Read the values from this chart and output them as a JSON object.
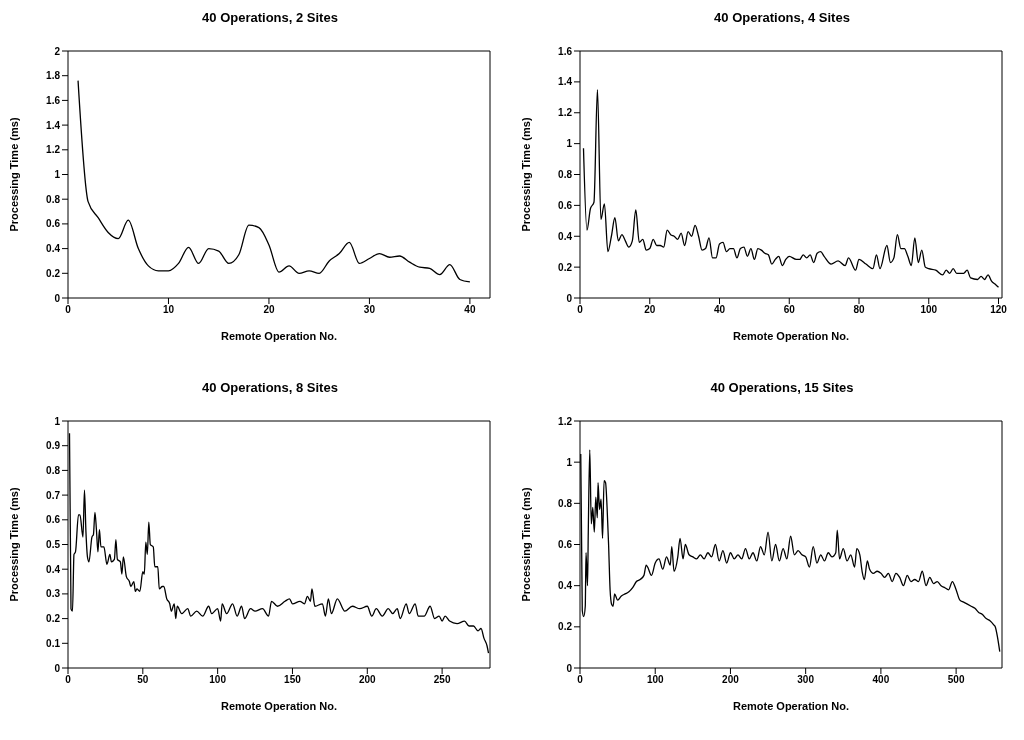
{
  "chart_data": [
    {
      "type": "line",
      "title": "40 Operations, 2 Sites",
      "xlabel": "Remote Operation No.",
      "ylabel": "Processing Time (ms)",
      "xlim": [
        0,
        42
      ],
      "xticks": [
        0,
        10,
        20,
        30,
        40
      ],
      "ylim": [
        0,
        2
      ],
      "yticks": [
        0,
        0.2,
        0.4,
        0.6,
        0.8,
        1,
        1.2,
        1.4,
        1.6,
        1.8,
        2
      ],
      "x": [
        1,
        2,
        3,
        4,
        5,
        6,
        7,
        8,
        9,
        10,
        11,
        12,
        13,
        14,
        15,
        16,
        17,
        18,
        19,
        20,
        21,
        22,
        23,
        24,
        25,
        26,
        27,
        28,
        29,
        30,
        31,
        32,
        33,
        34,
        35,
        36,
        37,
        38,
        39,
        40
      ],
      "series": [
        {
          "color": "#000000",
          "values": [
            1.76,
            0.78,
            0.65,
            0.53,
            0.48,
            0.63,
            0.4,
            0.26,
            0.22,
            0.22,
            0.28,
            0.41,
            0.28,
            0.4,
            0.38,
            0.28,
            0.35,
            0.59,
            0.57,
            0.43,
            0.21,
            0.26,
            0.2,
            0.22,
            0.2,
            0.3,
            0.36,
            0.45,
            0.28,
            0.32,
            0.36,
            0.33,
            0.34,
            0.29,
            0.25,
            0.24,
            0.19,
            0.27,
            0.15,
            0.13
          ]
        }
      ]
    },
    {
      "type": "line",
      "title": "40 Operations, 4 Sites",
      "xlabel": "Remote Operation No.",
      "ylabel": "Processing Time (ms)",
      "xlim": [
        0,
        121
      ],
      "xticks": [
        0,
        20,
        40,
        60,
        80,
        100,
        120
      ],
      "ylim": [
        0,
        1.6
      ],
      "yticks": [
        0,
        0.2,
        0.4,
        0.6,
        0.8,
        1,
        1.2,
        1.4,
        1.6
      ],
      "x": [
        1,
        2,
        3,
        4,
        5,
        6,
        7,
        8,
        9,
        10,
        11,
        12,
        13,
        14,
        15,
        16,
        17,
        18,
        19,
        20,
        21,
        22,
        23,
        24,
        25,
        26,
        27,
        28,
        29,
        30,
        31,
        32,
        33,
        34,
        35,
        36,
        37,
        38,
        39,
        40,
        41,
        42,
        43,
        44,
        45,
        46,
        47,
        48,
        49,
        50,
        51,
        52,
        53,
        54,
        55,
        56,
        57,
        58,
        59,
        60,
        62,
        63,
        64,
        65,
        66,
        67,
        68,
        69,
        70,
        72,
        74,
        76,
        77,
        79,
        80,
        82,
        84,
        85,
        86,
        88,
        89,
        90,
        91,
        92,
        93,
        94,
        95,
        96,
        97,
        98,
        99,
        100,
        102,
        104,
        105,
        106,
        107,
        108,
        110,
        111,
        112,
        114,
        115,
        116,
        117,
        118,
        119,
        120
      ],
      "series": [
        {
          "color": "#000000",
          "values": [
            0.97,
            0.44,
            0.58,
            0.62,
            1.35,
            0.51,
            0.61,
            0.3,
            0.4,
            0.52,
            0.37,
            0.41,
            0.37,
            0.33,
            0.37,
            0.57,
            0.36,
            0.38,
            0.31,
            0.32,
            0.38,
            0.34,
            0.34,
            0.33,
            0.44,
            0.41,
            0.4,
            0.38,
            0.42,
            0.34,
            0.43,
            0.4,
            0.47,
            0.4,
            0.31,
            0.32,
            0.39,
            0.26,
            0.26,
            0.35,
            0.36,
            0.3,
            0.32,
            0.32,
            0.26,
            0.32,
            0.33,
            0.27,
            0.32,
            0.25,
            0.32,
            0.31,
            0.29,
            0.28,
            0.22,
            0.25,
            0.27,
            0.21,
            0.25,
            0.27,
            0.25,
            0.25,
            0.28,
            0.26,
            0.28,
            0.23,
            0.29,
            0.3,
            0.27,
            0.22,
            0.24,
            0.21,
            0.26,
            0.18,
            0.25,
            0.22,
            0.19,
            0.28,
            0.19,
            0.34,
            0.23,
            0.26,
            0.41,
            0.32,
            0.32,
            0.27,
            0.21,
            0.39,
            0.23,
            0.31,
            0.2,
            0.19,
            0.18,
            0.15,
            0.18,
            0.16,
            0.19,
            0.16,
            0.16,
            0.18,
            0.13,
            0.12,
            0.14,
            0.12,
            0.15,
            0.11,
            0.09,
            0.07
          ]
        }
      ]
    },
    {
      "type": "line",
      "title": "40 Operations, 8 Sites",
      "xlabel": "Remote Operation No.",
      "ylabel": "Processing Time (ms)",
      "xlim": [
        0,
        282
      ],
      "xticks": [
        0,
        50,
        100,
        150,
        200,
        250
      ],
      "ylim": [
        0,
        1
      ],
      "yticks": [
        0,
        0.1,
        0.2,
        0.3,
        0.4,
        0.5,
        0.6,
        0.7,
        0.8,
        0.9,
        1
      ],
      "x": [
        1,
        2,
        3,
        4,
        5,
        7,
        8,
        10,
        11,
        12,
        13,
        14,
        16,
        17,
        18,
        19,
        20,
        21,
        22,
        24,
        26,
        28,
        29,
        31,
        32,
        33,
        35,
        36,
        37,
        39,
        41,
        42,
        44,
        45,
        46,
        48,
        50,
        51,
        52,
        53,
        54,
        55,
        57,
        58,
        60,
        61,
        63,
        64,
        66,
        68,
        69,
        71,
        72,
        73,
        76,
        80,
        82,
        86,
        90,
        94,
        96,
        100,
        102,
        103,
        106,
        110,
        113,
        116,
        118,
        122,
        125,
        130,
        134,
        136,
        140,
        145,
        148,
        150,
        155,
        158,
        160,
        162,
        163,
        165,
        170,
        172,
        174,
        176,
        180,
        185,
        190,
        195,
        200,
        203,
        206,
        210,
        214,
        217,
        220,
        222,
        226,
        228,
        232,
        234,
        238,
        242,
        245,
        248,
        250,
        252,
        255,
        260,
        265,
        268,
        271,
        274,
        276,
        278,
        280,
        281
      ],
      "series": [
        {
          "color": "#000000",
          "values": [
            0.95,
            0.24,
            0.23,
            0.46,
            0.47,
            0.62,
            0.62,
            0.53,
            0.72,
            0.55,
            0.45,
            0.43,
            0.53,
            0.54,
            0.63,
            0.56,
            0.47,
            0.56,
            0.49,
            0.49,
            0.42,
            0.46,
            0.43,
            0.44,
            0.52,
            0.44,
            0.43,
            0.38,
            0.45,
            0.37,
            0.35,
            0.33,
            0.35,
            0.31,
            0.32,
            0.31,
            0.39,
            0.38,
            0.51,
            0.46,
            0.59,
            0.5,
            0.49,
            0.41,
            0.41,
            0.32,
            0.33,
            0.33,
            0.28,
            0.26,
            0.23,
            0.26,
            0.2,
            0.25,
            0.22,
            0.24,
            0.21,
            0.23,
            0.21,
            0.25,
            0.22,
            0.24,
            0.19,
            0.26,
            0.22,
            0.26,
            0.21,
            0.25,
            0.2,
            0.24,
            0.23,
            0.24,
            0.21,
            0.27,
            0.25,
            0.27,
            0.28,
            0.26,
            0.27,
            0.26,
            0.29,
            0.27,
            0.32,
            0.25,
            0.26,
            0.21,
            0.28,
            0.22,
            0.28,
            0.23,
            0.25,
            0.24,
            0.25,
            0.21,
            0.24,
            0.21,
            0.24,
            0.22,
            0.24,
            0.2,
            0.26,
            0.22,
            0.26,
            0.21,
            0.21,
            0.25,
            0.2,
            0.21,
            0.19,
            0.21,
            0.19,
            0.18,
            0.19,
            0.17,
            0.17,
            0.15,
            0.16,
            0.12,
            0.09,
            0.06
          ]
        }
      ]
    },
    {
      "type": "line",
      "title": "40 Operations, 15 Sites",
      "xlabel": "Remote Operation No.",
      "ylabel": "Processing Time (ms)",
      "xlim": [
        0,
        561
      ],
      "xticks": [
        0,
        100,
        200,
        300,
        400,
        500
      ],
      "ylim": [
        0,
        1.2
      ],
      "yticks": [
        0,
        0.2,
        0.4,
        0.6,
        0.8,
        1,
        1.2
      ],
      "x": [
        1,
        3,
        5,
        7,
        8,
        10,
        11,
        13,
        15,
        17,
        19,
        21,
        23,
        24,
        26,
        28,
        30,
        32,
        34,
        36,
        38,
        40,
        42,
        44,
        46,
        50,
        55,
        60,
        65,
        70,
        75,
        80,
        85,
        88,
        90,
        95,
        100,
        105,
        110,
        115,
        120,
        122,
        125,
        130,
        133,
        137,
        140,
        145,
        150,
        155,
        160,
        165,
        170,
        175,
        180,
        185,
        190,
        195,
        200,
        205,
        210,
        215,
        220,
        225,
        230,
        235,
        240,
        245,
        250,
        255,
        260,
        265,
        270,
        275,
        280,
        285,
        290,
        295,
        300,
        305,
        310,
        315,
        320,
        325,
        330,
        335,
        340,
        342,
        345,
        350,
        355,
        360,
        365,
        368,
        372,
        375,
        378,
        382,
        385,
        390,
        395,
        400,
        405,
        410,
        415,
        420,
        425,
        430,
        435,
        440,
        445,
        450,
        455,
        460,
        465,
        470,
        475,
        480,
        485,
        490,
        495,
        500,
        505,
        510,
        515,
        520,
        525,
        530,
        535,
        540,
        545,
        550,
        552,
        555,
        558
      ],
      "series": [
        {
          "color": "#000000",
          "values": [
            1.04,
            0.28,
            0.25,
            0.3,
            0.56,
            0.4,
            0.66,
            1.06,
            0.7,
            0.78,
            0.66,
            0.83,
            0.73,
            0.9,
            0.77,
            0.82,
            0.63,
            0.91,
            0.9,
            0.78,
            0.6,
            0.38,
            0.31,
            0.3,
            0.36,
            0.33,
            0.35,
            0.36,
            0.37,
            0.39,
            0.42,
            0.43,
            0.45,
            0.5,
            0.49,
            0.45,
            0.51,
            0.53,
            0.48,
            0.54,
            0.5,
            0.59,
            0.47,
            0.54,
            0.63,
            0.53,
            0.6,
            0.55,
            0.54,
            0.53,
            0.55,
            0.53,
            0.56,
            0.54,
            0.6,
            0.52,
            0.57,
            0.51,
            0.56,
            0.53,
            0.55,
            0.53,
            0.58,
            0.53,
            0.56,
            0.52,
            0.59,
            0.55,
            0.66,
            0.52,
            0.6,
            0.52,
            0.58,
            0.53,
            0.64,
            0.55,
            0.57,
            0.55,
            0.54,
            0.49,
            0.59,
            0.51,
            0.55,
            0.52,
            0.56,
            0.54,
            0.56,
            0.67,
            0.53,
            0.58,
            0.52,
            0.55,
            0.49,
            0.58,
            0.55,
            0.47,
            0.43,
            0.52,
            0.48,
            0.46,
            0.47,
            0.46,
            0.44,
            0.46,
            0.42,
            0.46,
            0.44,
            0.4,
            0.45,
            0.42,
            0.43,
            0.42,
            0.47,
            0.4,
            0.44,
            0.41,
            0.42,
            0.4,
            0.39,
            0.38,
            0.42,
            0.38,
            0.33,
            0.32,
            0.31,
            0.3,
            0.29,
            0.27,
            0.26,
            0.24,
            0.23,
            0.21,
            0.2,
            0.15,
            0.08
          ]
        }
      ]
    }
  ]
}
